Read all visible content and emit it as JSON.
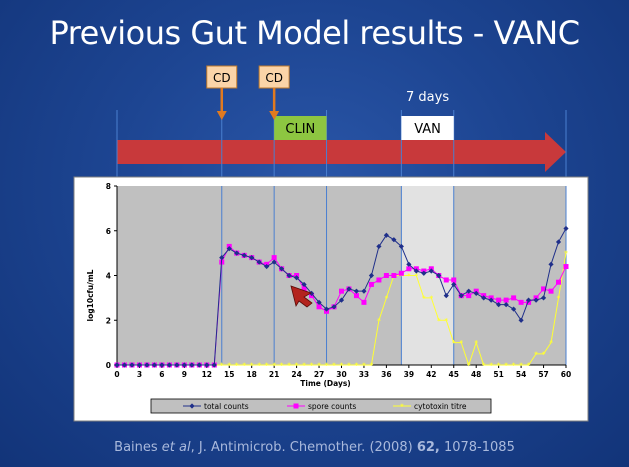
{
  "slide": {
    "title": "Previous Gut Model results - VANC",
    "citation_authors": "Baines ",
    "citation_etal": "et al",
    "citation_journal": ", J. Antimicrob. Chemother. (2008) ",
    "citation_volume": "62,",
    "citation_pages": " 1078-1085"
  },
  "timeline": {
    "markers": [
      {
        "label": "CD",
        "day": 14
      },
      {
        "label": "CD",
        "day": 21
      }
    ],
    "phases": [
      {
        "label": "CLIN",
        "start_day": 21,
        "end_day": 28,
        "color": "#8dc641"
      },
      {
        "label": "VAN",
        "start_day": 38,
        "end_day": 45,
        "color": "#ffffff"
      }
    ],
    "duration_label": "7 days",
    "divider_days": [
      0,
      14,
      21,
      28,
      38,
      45,
      60
    ],
    "arrow_color": "#c8393b"
  },
  "colors": {
    "total": "#1f2f8a",
    "spore": "#ff00ff",
    "toxin": "#ffff33",
    "plot_bg": "#c0c0c0",
    "shade": "#e2e2e2"
  },
  "chart_data": {
    "type": "line",
    "xlabel": "Time (Days)",
    "ylabel": "log10cfu/mL",
    "xlim": [
      0,
      60
    ],
    "ylim": [
      0,
      8
    ],
    "xticks": [
      0,
      3,
      6,
      9,
      12,
      15,
      18,
      21,
      24,
      27,
      30,
      33,
      36,
      39,
      42,
      45,
      48,
      51,
      54,
      57,
      60
    ],
    "yticks": [
      0,
      2,
      4,
      6,
      8
    ],
    "grid": false,
    "shaded_x_range": [
      38,
      45
    ],
    "legend_position": "bottom",
    "series": [
      {
        "name": "total counts",
        "color_key": "total",
        "marker": "diamond",
        "x": [
          0,
          1,
          2,
          3,
          4,
          5,
          6,
          7,
          8,
          9,
          10,
          11,
          12,
          13,
          14,
          15,
          16,
          17,
          18,
          19,
          20,
          21,
          22,
          23,
          24,
          25,
          26,
          27,
          28,
          29,
          30,
          31,
          32,
          33,
          34,
          35,
          36,
          37,
          38,
          39,
          40,
          41,
          42,
          43,
          44,
          45,
          46,
          47,
          48,
          49,
          50,
          51,
          52,
          53,
          54,
          55,
          56,
          57,
          58,
          59,
          60
        ],
        "y": [
          0,
          0,
          0,
          0,
          0,
          0,
          0,
          0,
          0,
          0,
          0,
          0,
          0,
          0,
          4.8,
          5.2,
          5.0,
          4.9,
          4.8,
          4.6,
          4.4,
          4.6,
          4.3,
          4.0,
          3.9,
          3.6,
          3.2,
          2.8,
          2.5,
          2.6,
          2.9,
          3.4,
          3.3,
          3.3,
          4.0,
          5.3,
          5.8,
          5.6,
          5.3,
          4.5,
          4.2,
          4.1,
          4.2,
          4.0,
          3.1,
          3.6,
          3.1,
          3.3,
          3.2,
          3.0,
          2.9,
          2.7,
          2.7,
          2.5,
          2.0,
          2.9,
          2.9,
          3.0,
          4.5,
          5.5,
          6.1
        ]
      },
      {
        "name": "spore counts",
        "color_key": "spore",
        "marker": "square",
        "x": [
          0,
          1,
          2,
          3,
          4,
          5,
          6,
          7,
          8,
          9,
          10,
          11,
          12,
          13,
          14,
          15,
          16,
          17,
          18,
          19,
          20,
          21,
          22,
          23,
          24,
          25,
          26,
          27,
          28,
          29,
          30,
          31,
          32,
          33,
          34,
          35,
          36,
          37,
          38,
          39,
          40,
          41,
          42,
          43,
          44,
          45,
          46,
          47,
          48,
          49,
          50,
          51,
          52,
          53,
          54,
          55,
          56,
          57,
          58,
          59,
          60
        ],
        "y": [
          0,
          0,
          0,
          0,
          0,
          0,
          0,
          0,
          0,
          0,
          0,
          0,
          0,
          0,
          4.6,
          5.3,
          5.0,
          4.9,
          4.8,
          4.6,
          4.5,
          4.8,
          4.3,
          4.0,
          4.0,
          3.4,
          3.1,
          2.6,
          2.4,
          2.6,
          3.3,
          3.4,
          3.1,
          2.8,
          3.6,
          3.8,
          4.0,
          4.0,
          4.1,
          4.3,
          4.3,
          4.2,
          4.3,
          4.0,
          3.8,
          3.8,
          3.1,
          3.1,
          3.3,
          3.1,
          3.0,
          2.9,
          2.9,
          3.0,
          2.8,
          2.8,
          3.0,
          3.4,
          3.3,
          3.7,
          4.4
        ]
      },
      {
        "name": "cytotoxin titre",
        "color_key": "toxin",
        "marker": "tri",
        "x": [
          0,
          1,
          2,
          3,
          4,
          5,
          6,
          7,
          8,
          9,
          10,
          11,
          12,
          13,
          14,
          15,
          16,
          17,
          18,
          19,
          20,
          21,
          22,
          23,
          24,
          25,
          26,
          27,
          28,
          29,
          30,
          31,
          32,
          33,
          34,
          35,
          36,
          37,
          38,
          39,
          40,
          41,
          42,
          43,
          44,
          45,
          46,
          47,
          48,
          49,
          50,
          51,
          52,
          53,
          54,
          55,
          56,
          57,
          58,
          59,
          60
        ],
        "y": [
          0,
          0,
          0,
          0,
          0,
          0,
          0,
          0,
          0,
          0,
          0,
          0,
          0,
          0,
          0,
          0,
          0,
          0,
          0,
          0,
          0,
          0,
          0,
          0,
          0,
          0,
          0,
          0,
          0,
          0,
          0,
          0,
          0,
          0,
          0,
          2.0,
          3.0,
          4.0,
          4.0,
          4.0,
          4.0,
          3.0,
          3.0,
          2.0,
          2.0,
          1.0,
          1.0,
          0,
          1.0,
          0,
          0,
          0,
          0,
          0,
          0,
          0,
          0.5,
          0.5,
          1.0,
          3.0,
          5.0
        ]
      }
    ]
  }
}
